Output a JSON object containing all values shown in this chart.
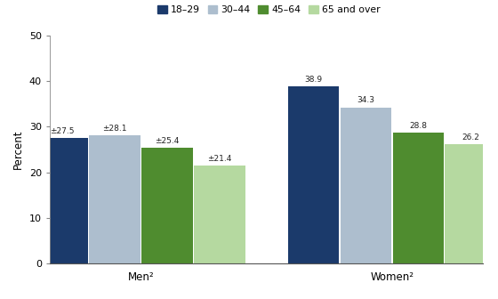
{
  "groups": [
    "Men²",
    "Women²"
  ],
  "age_labels": [
    "18–29",
    "30–44",
    "45–64",
    "65 and over"
  ],
  "values": {
    "Men²": [
      27.5,
      28.1,
      25.4,
      21.4
    ],
    "Women²": [
      38.9,
      34.3,
      28.8,
      26.2
    ]
  },
  "bar_labels": {
    "Men²": [
      "±27.5",
      "±28.1",
      "±25.4",
      "±21.4"
    ],
    "Women²": [
      "38.9",
      "34.3",
      "28.8",
      "26.2"
    ]
  },
  "colors": [
    "#1b3a6b",
    "#adbece",
    "#4f8c2f",
    "#b5d9a0"
  ],
  "ylabel": "Percent",
  "ylim": [
    0,
    50
  ],
  "yticks": [
    0,
    10,
    20,
    30,
    40,
    50
  ],
  "bar_width": 0.115,
  "group_centers": [
    0.3,
    0.85
  ]
}
